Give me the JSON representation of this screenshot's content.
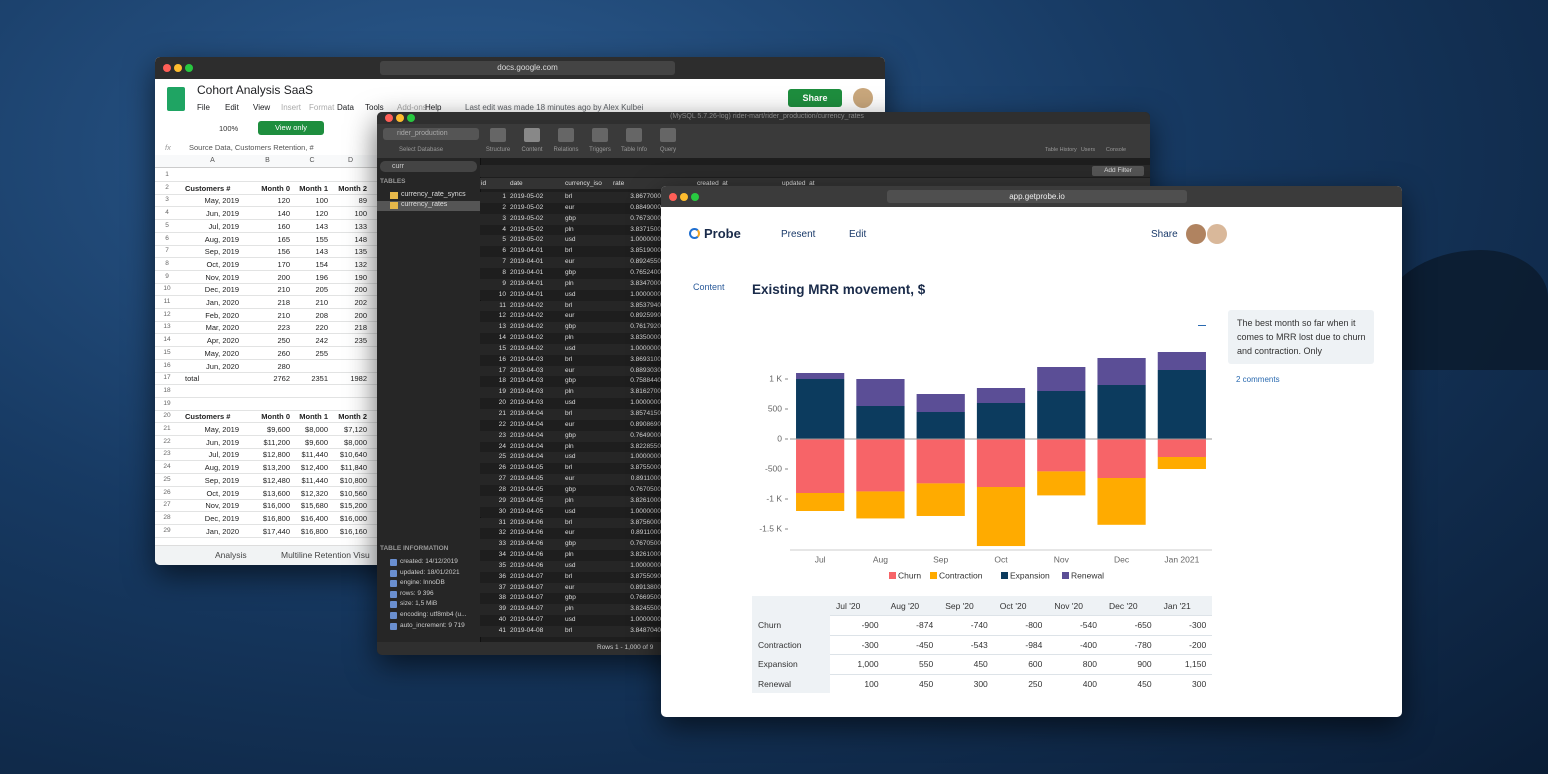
{
  "sheets": {
    "url": "docs.google.com",
    "title": "Cohort Analysis SaaS",
    "menu": [
      "File",
      "Edit",
      "View",
      "Insert",
      "Format",
      "Data",
      "Tools",
      "Add-ons",
      "Help"
    ],
    "last_edit": "Last edit was made 18 minutes ago by Alex Kulbei",
    "share": "Share",
    "zoom": "100%",
    "view_only": "View only",
    "fx": "fx",
    "formula": "Source Data, Customers Retention, #",
    "columns": [
      "A",
      "B",
      "C",
      "D"
    ],
    "rows": [
      [
        1
      ],
      [
        2,
        "Customers #",
        "Month 0",
        "Month 1",
        "Month 2"
      ],
      [
        3,
        "May, 2019",
        "120",
        "100",
        "89"
      ],
      [
        4,
        "Jun, 2019",
        "140",
        "120",
        "100"
      ],
      [
        5,
        "Jul, 2019",
        "160",
        "143",
        "133"
      ],
      [
        6,
        "Aug, 2019",
        "165",
        "155",
        "148"
      ],
      [
        7,
        "Sep, 2019",
        "156",
        "143",
        "135"
      ],
      [
        8,
        "Oct, 2019",
        "170",
        "154",
        "132"
      ],
      [
        9,
        "Nov, 2019",
        "200",
        "196",
        "190"
      ],
      [
        10,
        "Dec, 2019",
        "210",
        "205",
        "200"
      ],
      [
        11,
        "Jan, 2020",
        "218",
        "210",
        "202"
      ],
      [
        12,
        "Feb, 2020",
        "210",
        "208",
        "200"
      ],
      [
        13,
        "Mar, 2020",
        "223",
        "220",
        "218"
      ],
      [
        14,
        "Apr, 2020",
        "250",
        "242",
        "235"
      ],
      [
        15,
        "May, 2020",
        "260",
        "255"
      ],
      [
        16,
        "Jun, 2020",
        "280"
      ],
      [
        17,
        "total",
        "2762",
        "2351",
        "1982"
      ],
      [
        18
      ],
      [
        19
      ],
      [
        20,
        "Customers #",
        "Month 0",
        "Month 1",
        "Month 2"
      ],
      [
        21,
        "May, 2019",
        "$9,600",
        "$8,000",
        "$7,120"
      ],
      [
        22,
        "Jun, 2019",
        "$11,200",
        "$9,600",
        "$8,000"
      ],
      [
        23,
        "Jul, 2019",
        "$12,800",
        "$11,440",
        "$10,640"
      ],
      [
        24,
        "Aug, 2019",
        "$13,200",
        "$12,400",
        "$11,840"
      ],
      [
        25,
        "Sep, 2019",
        "$12,480",
        "$11,440",
        "$10,800"
      ],
      [
        26,
        "Oct, 2019",
        "$13,600",
        "$12,320",
        "$10,560"
      ],
      [
        27,
        "Nov, 2019",
        "$16,000",
        "$15,680",
        "$15,200"
      ],
      [
        28,
        "Dec, 2019",
        "$16,800",
        "$16,400",
        "$16,000"
      ],
      [
        29,
        "Jan, 2020",
        "$17,440",
        "$16,800",
        "$16,160"
      ]
    ],
    "tabs": [
      "Analysis",
      "Multiline Retention Visu"
    ]
  },
  "sequel": {
    "title": "(MySQL 5.7.26-log) rider-mart/rider_production/currency_rates",
    "database": "rider_production",
    "select_database": "Select Database",
    "toolbar": [
      "Structure",
      "Content",
      "Relations",
      "Triggers",
      "Table Info",
      "Query"
    ],
    "toolbar_right": [
      "Table History",
      "Users",
      "Console"
    ],
    "search": "curr",
    "tables_label": "TABLES",
    "tables": [
      "currency_rate_syncs",
      "currency_rates"
    ],
    "columns": [
      "id",
      "date",
      "currency_iso",
      "rate",
      "created_at",
      "updated_at"
    ],
    "add_filter": "Add Filter",
    "rows": [
      [
        "1",
        "2019-05-02",
        "brl",
        "3.8677000"
      ],
      [
        "2",
        "2019-05-02",
        "eur",
        "0.8849000"
      ],
      [
        "3",
        "2019-05-02",
        "gbp",
        "0.7673000"
      ],
      [
        "4",
        "2019-05-02",
        "pln",
        "3.8371500"
      ],
      [
        "5",
        "2019-05-02",
        "usd",
        "1.0000000"
      ],
      [
        "6",
        "2019-04-01",
        "brl",
        "3.8519000"
      ],
      [
        "7",
        "2019-04-01",
        "eur",
        "0.8924550"
      ],
      [
        "8",
        "2019-04-01",
        "gbp",
        "0.7652400"
      ],
      [
        "9",
        "2019-04-01",
        "pln",
        "3.8347000"
      ],
      [
        "10",
        "2019-04-01",
        "usd",
        "1.0000000"
      ],
      [
        "11",
        "2019-04-02",
        "brl",
        "3.8537940"
      ],
      [
        "12",
        "2019-04-02",
        "eur",
        "0.8925990"
      ],
      [
        "13",
        "2019-04-02",
        "gbp",
        "0.7617920"
      ],
      [
        "14",
        "2019-04-02",
        "pln",
        "3.8350000"
      ],
      [
        "15",
        "2019-04-02",
        "usd",
        "1.0000000"
      ],
      [
        "16",
        "2019-04-03",
        "brl",
        "3.8693100"
      ],
      [
        "17",
        "2019-04-03",
        "eur",
        "0.8893030"
      ],
      [
        "18",
        "2019-04-03",
        "gbp",
        "0.7588440"
      ],
      [
        "19",
        "2019-04-03",
        "pln",
        "3.8162700"
      ],
      [
        "20",
        "2019-04-03",
        "usd",
        "1.0000000"
      ],
      [
        "21",
        "2019-04-04",
        "brl",
        "3.8574150"
      ],
      [
        "22",
        "2019-04-04",
        "eur",
        "0.8908690"
      ],
      [
        "23",
        "2019-04-04",
        "gbp",
        "0.7649000"
      ],
      [
        "24",
        "2019-04-04",
        "pln",
        "3.8228550"
      ],
      [
        "25",
        "2019-04-04",
        "usd",
        "1.0000000"
      ],
      [
        "26",
        "2019-04-05",
        "brl",
        "3.8755000"
      ],
      [
        "27",
        "2019-04-05",
        "eur",
        "0.8911000"
      ],
      [
        "28",
        "2019-04-05",
        "gbp",
        "0.7670500"
      ],
      [
        "29",
        "2019-04-05",
        "pln",
        "3.8261000"
      ],
      [
        "30",
        "2019-04-05",
        "usd",
        "1.0000000"
      ],
      [
        "31",
        "2019-04-06",
        "brl",
        "3.8756000"
      ],
      [
        "32",
        "2019-04-06",
        "eur",
        "0.8911000"
      ],
      [
        "33",
        "2019-04-06",
        "gbp",
        "0.7670500"
      ],
      [
        "34",
        "2019-04-06",
        "pln",
        "3.8261000"
      ],
      [
        "35",
        "2019-04-06",
        "usd",
        "1.0000000"
      ],
      [
        "36",
        "2019-04-07",
        "brl",
        "3.8755090"
      ],
      [
        "37",
        "2019-04-07",
        "eur",
        "0.8913800"
      ],
      [
        "38",
        "2019-04-07",
        "gbp",
        "0.7669500"
      ],
      [
        "39",
        "2019-04-07",
        "pln",
        "3.8245500"
      ],
      [
        "40",
        "2019-04-07",
        "usd",
        "1.0000000"
      ],
      [
        "41",
        "2019-04-08",
        "brl",
        "3.8487040"
      ]
    ],
    "info_label": "TABLE INFORMATION",
    "info": [
      "created: 14/12/2019",
      "updated: 18/01/2021",
      "engine: InnoDB",
      "rows: 9 396",
      "size: 1,5 MiB",
      "encoding: utf8mb4 (u...",
      "auto_increment: 9 719"
    ],
    "status": "Rows 1 - 1,000 of 9"
  },
  "probe": {
    "url": "app.getprobe.io",
    "brand": "Probe",
    "nav": [
      "Present",
      "Edit"
    ],
    "share": "Share",
    "sidebar": "Content",
    "comment": "The best month so far when it comes to MRR lost due to churn and contraction. Only",
    "comments_link": "2 comments",
    "table": {
      "header": [
        "Jul '20",
        "Aug '20",
        "Sep '20",
        "Oct '20",
        "Nov '20",
        "Dec '20",
        "Jan '21"
      ],
      "rows": [
        [
          "Churn",
          "-900",
          "-874",
          "-740",
          "-800",
          "-540",
          "-650",
          "-300"
        ],
        [
          "Contraction",
          "-300",
          "-450",
          "-543",
          "-984",
          "-400",
          "-780",
          "-200"
        ],
        [
          "Expansion",
          "1,000",
          "550",
          "450",
          "600",
          "800",
          "900",
          "1,150"
        ],
        [
          "Renewal",
          "100",
          "450",
          "300",
          "250",
          "400",
          "450",
          "300"
        ]
      ]
    }
  },
  "chart_data": {
    "type": "bar",
    "stacked": true,
    "title": "Existing MRR movement, $",
    "categories": [
      "Jul",
      "Aug",
      "Sep",
      "Oct",
      "Nov",
      "Dec",
      "Jan 2021"
    ],
    "series": [
      {
        "name": "Churn",
        "color": "#f76468",
        "values": [
          -900,
          -874,
          -740,
          -800,
          -540,
          -650,
          -300
        ]
      },
      {
        "name": "Contraction",
        "color": "#ffab00",
        "values": [
          -300,
          -450,
          -543,
          -984,
          -400,
          -780,
          -200
        ]
      },
      {
        "name": "Expansion",
        "color": "#0c3b5e",
        "values": [
          1000,
          550,
          450,
          600,
          800,
          900,
          1150
        ]
      },
      {
        "name": "Renewal",
        "color": "#5b4e96",
        "values": [
          100,
          450,
          300,
          250,
          400,
          450,
          300
        ]
      }
    ],
    "ylim": [
      -1850,
      1600
    ],
    "yticks": [
      {
        "value": 1000,
        "label": "1 K"
      },
      500,
      0,
      -500,
      {
        "value": -1000,
        "label": "-1 K"
      },
      {
        "value": -1500,
        "label": "-1.5 K"
      }
    ],
    "grid": false,
    "legend": "bottom"
  }
}
